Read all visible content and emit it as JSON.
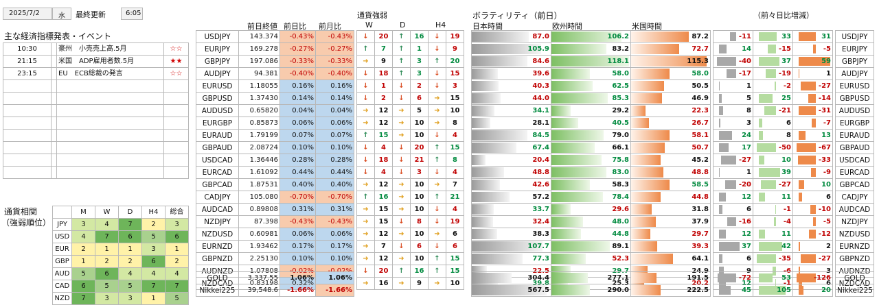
{
  "header": {
    "date": "2025/7/2",
    "weekday": "水",
    "updated_label": "最終更新",
    "time": "6:05"
  },
  "events": {
    "title": "主な経済指標発表・イベント",
    "rows": [
      {
        "time": "10:30",
        "country": "豪州",
        "event": "小売売上高.5月",
        "stars": "☆☆"
      },
      {
        "time": "21:15",
        "country": "米国",
        "event": "ADP雇用者数.5月",
        "stars": "★★"
      },
      {
        "time": "23:15",
        "country": "EU",
        "event": "ECB総裁の発言",
        "stars": "☆☆"
      }
    ]
  },
  "corr": {
    "title1": "通貨相関",
    "title2": "（強弱順位）",
    "headers": [
      "M",
      "W",
      "D",
      "H4",
      "総合"
    ],
    "rows": [
      {
        "cur": "JPY",
        "vals": [
          "3",
          "4",
          "7",
          "2",
          "3"
        ]
      },
      {
        "cur": "USD",
        "vals": [
          "4",
          "7",
          "6",
          "5",
          "6"
        ]
      },
      {
        "cur": "EUR",
        "vals": [
          "2",
          "1",
          "1",
          "3",
          "1"
        ]
      },
      {
        "cur": "GBP",
        "vals": [
          "1",
          "2",
          "2",
          "6",
          "2"
        ]
      },
      {
        "cur": "AUD",
        "vals": [
          "5",
          "6",
          "4",
          "4",
          "4"
        ]
      },
      {
        "cur": "CAD",
        "vals": [
          "6",
          "5",
          "5",
          "7",
          "7"
        ]
      },
      {
        "cur": "NZD",
        "vals": [
          "7",
          "3",
          "3",
          "1",
          "5"
        ]
      }
    ]
  },
  "col_headers": {
    "close": "前日終値",
    "dchg": "前日比",
    "mchg": "前月比",
    "strength": "通貨強弱",
    "w": "W",
    "d": "D",
    "h4": "H4",
    "vol": "ボラティリティ（前日）",
    "jp": "日本時間",
    "eu": "欧州時間",
    "us": "米国時間",
    "cmp": "（前々日比増減）"
  },
  "pairs": [
    {
      "sym": "USDJPY",
      "close": "143.374",
      "d": "-0.43%",
      "m": "-0.43%",
      "w": [
        "↓",
        "20"
      ],
      "dd": [
        "↑",
        "16"
      ],
      "h": [
        "↓",
        "19"
      ],
      "jp": "87.0",
      "eu": "106.2",
      "us": "87.2",
      "c": [
        "-11",
        "33",
        "31"
      ]
    },
    {
      "sym": "EURJPY",
      "close": "169.278",
      "d": "-0.27%",
      "m": "-0.27%",
      "w": [
        "↑",
        "7"
      ],
      "dd": [
        "↑",
        "1"
      ],
      "h": [
        "↓",
        "9"
      ],
      "jp": "105.9",
      "eu": "83.2",
      "us": "72.7",
      "c": [
        "14",
        "-15",
        "-5"
      ]
    },
    {
      "sym": "GBPJPY",
      "close": "197.086",
      "d": "-0.33%",
      "m": "-0.33%",
      "w": [
        "➜",
        "9"
      ],
      "dd": [
        "↑",
        "3"
      ],
      "h": [
        "↑",
        "20"
      ],
      "jp": "84.6",
      "eu": "118.1",
      "us": "115.3",
      "c": [
        "-40",
        "37",
        "59"
      ]
    },
    {
      "sym": "AUDJPY",
      "close": "94.381",
      "d": "-0.40%",
      "m": "-0.40%",
      "w": [
        "↓",
        "18"
      ],
      "dd": [
        "↑",
        "3"
      ],
      "h": [
        "↓",
        "15"
      ],
      "jp": "39.6",
      "eu": "58.0",
      "us": "58.0",
      "c": [
        "-17",
        "-19",
        "1"
      ]
    },
    {
      "sym": "EURUSD",
      "close": "1.18055",
      "d": "0.16%",
      "m": "0.16%",
      "w": [
        "↓",
        "1"
      ],
      "dd": [
        "↓",
        "2"
      ],
      "h": [
        "↓",
        "3"
      ],
      "jp": "40.3",
      "eu": "62.5",
      "us": "50.5",
      "c": [
        "1",
        "-2",
        "-27"
      ]
    },
    {
      "sym": "GBPUSD",
      "close": "1.37430",
      "d": "0.14%",
      "m": "0.14%",
      "w": [
        "↓",
        "2"
      ],
      "dd": [
        "↓",
        "6"
      ],
      "h": [
        "➜",
        "15"
      ],
      "jp": "44.0",
      "eu": "85.3",
      "us": "46.9",
      "c": [
        "5",
        "25",
        "-14"
      ]
    },
    {
      "sym": "AUDUSD",
      "close": "0.65820",
      "d": "0.04%",
      "m": "0.04%",
      "w": [
        "➜",
        "12"
      ],
      "dd": [
        "➜",
        "5"
      ],
      "h": [
        "➜",
        "10"
      ],
      "jp": "34.1",
      "eu": "29.2",
      "us": "22.3",
      "c": [
        "8",
        "-21",
        "-31"
      ]
    },
    {
      "sym": "EURGBP",
      "close": "0.85873",
      "d": "0.06%",
      "m": "0.06%",
      "w": [
        "➜",
        "12"
      ],
      "dd": [
        "➜",
        "10"
      ],
      "h": [
        "➜",
        "8"
      ],
      "jp": "28.1",
      "eu": "40.5",
      "us": "26.7",
      "c": [
        "3",
        "6",
        "-7"
      ]
    },
    {
      "sym": "EURAUD",
      "close": "1.79199",
      "d": "0.07%",
      "m": "0.07%",
      "w": [
        "↑",
        "15"
      ],
      "dd": [
        "➜",
        "10"
      ],
      "h": [
        "↓",
        "4"
      ],
      "jp": "84.5",
      "eu": "79.0",
      "us": "58.1",
      "c": [
        "24",
        "8",
        "13"
      ]
    },
    {
      "sym": "GBPAUD",
      "close": "2.08724",
      "d": "0.10%",
      "m": "0.10%",
      "w": [
        "↓",
        "4"
      ],
      "dd": [
        "↓",
        "20"
      ],
      "h": [
        "↑",
        "15"
      ],
      "jp": "67.4",
      "eu": "66.1",
      "us": "50.7",
      "c": [
        "17",
        "-50",
        "-67"
      ]
    },
    {
      "sym": "USDCAD",
      "close": "1.36446",
      "d": "0.28%",
      "m": "0.28%",
      "w": [
        "↓",
        "18"
      ],
      "dd": [
        "↓",
        "21"
      ],
      "h": [
        "↑",
        "8"
      ],
      "jp": "20.4",
      "eu": "75.8",
      "us": "45.2",
      "c": [
        "-27",
        "10",
        "-33"
      ]
    },
    {
      "sym": "EURCAD",
      "close": "1.61092",
      "d": "0.44%",
      "m": "0.44%",
      "w": [
        "↓",
        "4"
      ],
      "dd": [
        "↓",
        "3"
      ],
      "h": [
        "↓",
        "4"
      ],
      "jp": "48.8",
      "eu": "83.0",
      "us": "48.8",
      "c": [
        "1",
        "39",
        "-9"
      ]
    },
    {
      "sym": "GBPCAD",
      "close": "1.87531",
      "d": "0.40%",
      "m": "0.40%",
      "w": [
        "➜",
        "12"
      ],
      "dd": [
        "➜",
        "10"
      ],
      "h": [
        "➜",
        "7"
      ],
      "jp": "42.6",
      "eu": "58.3",
      "us": "58.5",
      "c": [
        "-20",
        "-27",
        "10"
      ]
    },
    {
      "sym": "CADJPY",
      "close": "105.080",
      "d": "-0.70%",
      "m": "-0.70%",
      "w": [
        "↑",
        "16"
      ],
      "dd": [
        "➜",
        "10"
      ],
      "h": [
        "↑",
        "21"
      ],
      "jp": "57.2",
      "eu": "78.4",
      "us": "44.8",
      "c": [
        "12",
        "11",
        "6"
      ]
    },
    {
      "sym": "AUDCAD",
      "close": "0.89808",
      "d": "0.31%",
      "m": "0.31%",
      "w": [
        "➜",
        "15"
      ],
      "dd": [
        "➜",
        "10"
      ],
      "h": [
        "↓",
        "4"
      ],
      "jp": "33.7",
      "eu": "29.6",
      "us": "31.8",
      "c": [
        "6",
        "-1",
        "-10"
      ]
    },
    {
      "sym": "NZDJPY",
      "close": "87.398",
      "d": "-0.43%",
      "m": "-0.43%",
      "w": [
        "➜",
        "15"
      ],
      "dd": [
        "↓",
        "8"
      ],
      "h": [
        "↓",
        "19"
      ],
      "jp": "32.4",
      "eu": "48.0",
      "us": "37.9",
      "c": [
        "-16",
        "-4",
        "-5"
      ]
    },
    {
      "sym": "NZDUSD",
      "close": "0.60981",
      "d": "0.06%",
      "m": "0.06%",
      "w": [
        "➜",
        "12"
      ],
      "dd": [
        "➜",
        "10"
      ],
      "h": [
        "➜",
        "6"
      ],
      "jp": "38.3",
      "eu": "44.8",
      "us": "29.7",
      "c": [
        "12",
        "11",
        "-12"
      ]
    },
    {
      "sym": "EURNZD",
      "close": "1.93462",
      "d": "0.17%",
      "m": "0.17%",
      "w": [
        "➜",
        "7"
      ],
      "dd": [
        "↓",
        "6"
      ],
      "h": [
        "↓",
        "6"
      ],
      "jp": "107.7",
      "eu": "89.1",
      "us": "39.3",
      "c": [
        "37",
        "42",
        "2"
      ]
    },
    {
      "sym": "GBPNZD",
      "close": "2.25130",
      "d": "0.10%",
      "m": "0.10%",
      "w": [
        "➜",
        "12"
      ],
      "dd": [
        "➜",
        "10"
      ],
      "h": [
        "↑",
        "15"
      ],
      "jp": "77.3",
      "eu": "52.3",
      "us": "64.1",
      "c": [
        "6",
        "-35",
        "-27"
      ]
    },
    {
      "sym": "AUDNZD",
      "close": "1.07808",
      "d": "-0.02%",
      "m": "-0.02%",
      "w": [
        "↓",
        "20"
      ],
      "dd": [
        "↑",
        "16"
      ],
      "h": [
        "↑",
        "15"
      ],
      "jp": "22.5",
      "eu": "29.7",
      "us": "24.9",
      "c": [
        "9",
        "-6",
        "3"
      ]
    },
    {
      "sym": "NZDCAD",
      "close": "0.83198",
      "d": "0.32%",
      "m": "0.32%",
      "w": [
        "➜",
        "16"
      ],
      "dd": [
        "➜",
        "9"
      ],
      "h": [
        "➜",
        "10"
      ],
      "jp": "39.8",
      "eu": "25.3",
      "us": "20.2",
      "c": [
        "12",
        "-1",
        "6"
      ]
    }
  ],
  "extras": [
    {
      "sym": "GOLD",
      "close": "3,337.55",
      "d": "1.06%",
      "m": "1.06%",
      "jp": "304.4",
      "eu": "277.1",
      "us": "191.5",
      "c": [
        "-72",
        "53",
        "-126"
      ]
    },
    {
      "sym": "Nikkei225",
      "close": "39,548.6",
      "d": "-1.66%",
      "m": "-1.66%",
      "jp": "567.5",
      "eu": "290.0",
      "us": "222.5",
      "c": [
        "45",
        "105",
        "20"
      ]
    }
  ],
  "colors": {
    "neg_text": "#c00000",
    "pos_text": "#008a3e",
    "green_bar": "#8fcb78",
    "orange_bar": "#ee8a4a",
    "grey_bar": "#a8a8a8",
    "blue_cell": "#bdd7ee",
    "peach_cell": "#f8cbad"
  }
}
